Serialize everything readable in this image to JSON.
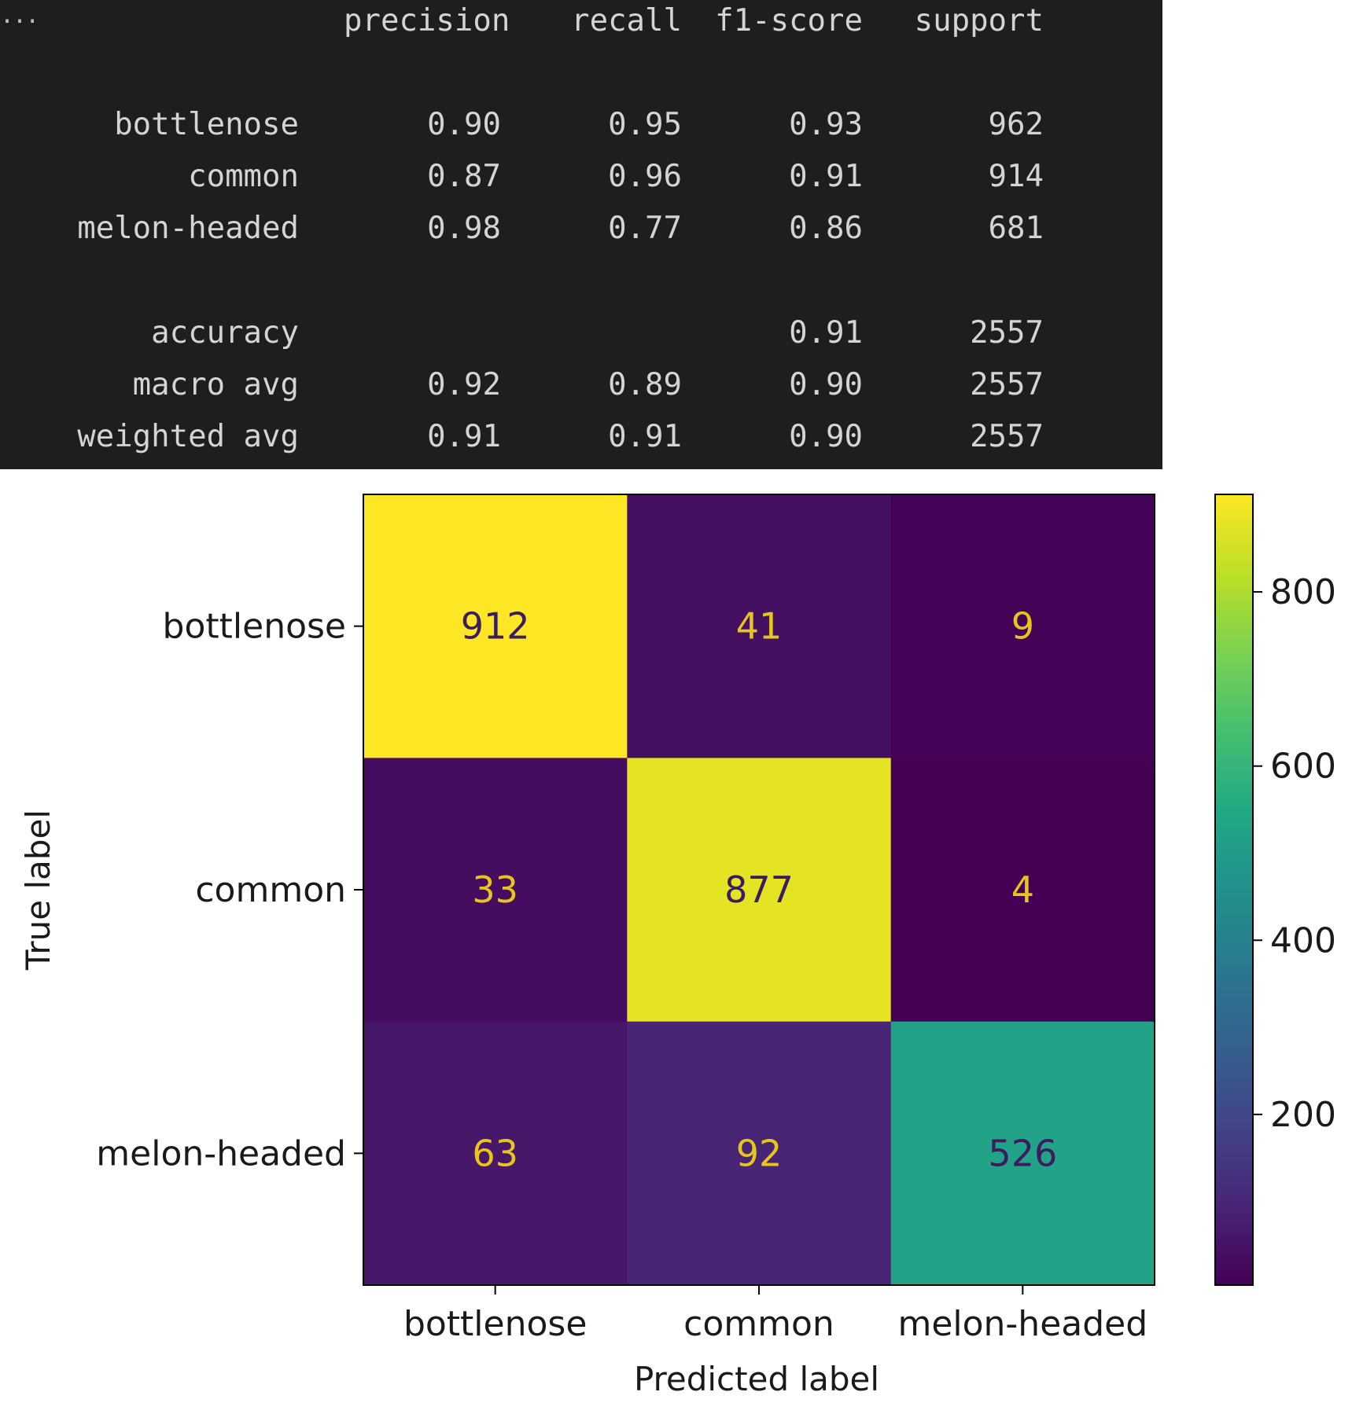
{
  "console": {
    "ellipsis": "...",
    "headers": [
      "precision",
      "recall",
      "f1-score",
      "support"
    ],
    "class_rows": [
      {
        "label": "bottlenose",
        "precision": "0.90",
        "recall": "0.95",
        "f1": "0.93",
        "support": "962"
      },
      {
        "label": "common",
        "precision": "0.87",
        "recall": "0.96",
        "f1": "0.91",
        "support": "914"
      },
      {
        "label": "melon-headed",
        "precision": "0.98",
        "recall": "0.77",
        "f1": "0.86",
        "support": "681"
      }
    ],
    "summary_rows": [
      {
        "label": "accuracy",
        "precision": "",
        "recall": "",
        "f1": "0.91",
        "support": "2557"
      },
      {
        "label": "macro avg",
        "precision": "0.92",
        "recall": "0.89",
        "f1": "0.90",
        "support": "2557"
      },
      {
        "label": "weighted avg",
        "precision": "0.91",
        "recall": "0.91",
        "f1": "0.90",
        "support": "2557"
      }
    ]
  },
  "chart_data": {
    "type": "heatmap",
    "title": "",
    "xlabel": "Predicted label",
    "ylabel": "True label",
    "x_categories": [
      "bottlenose",
      "common",
      "melon-headed"
    ],
    "y_categories": [
      "bottlenose",
      "common",
      "melon-headed"
    ],
    "values": [
      [
        912,
        41,
        9
      ],
      [
        33,
        877,
        4
      ],
      [
        63,
        92,
        526
      ]
    ],
    "colormap": "viridis",
    "color_range": [
      4,
      912
    ],
    "colorbar_ticks": [
      200,
      400,
      600,
      800
    ],
    "text_color_dark_cell": "#e8c51e",
    "text_color_light_cell": "#3b1d5e"
  }
}
